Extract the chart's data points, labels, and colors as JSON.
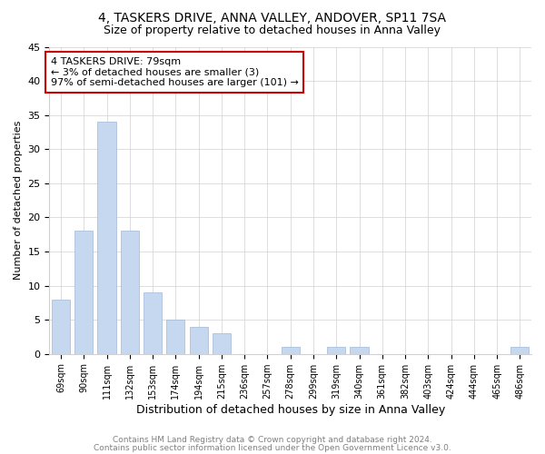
{
  "title1": "4, TASKERS DRIVE, ANNA VALLEY, ANDOVER, SP11 7SA",
  "title2": "Size of property relative to detached houses in Anna Valley",
  "xlabel": "Distribution of detached houses by size in Anna Valley",
  "ylabel": "Number of detached properties",
  "categories": [
    "69sqm",
    "90sqm",
    "111sqm",
    "132sqm",
    "153sqm",
    "174sqm",
    "194sqm",
    "215sqm",
    "236sqm",
    "257sqm",
    "278sqm",
    "299sqm",
    "319sqm",
    "340sqm",
    "361sqm",
    "382sqm",
    "403sqm",
    "424sqm",
    "444sqm",
    "465sqm",
    "486sqm"
  ],
  "values": [
    8,
    18,
    34,
    18,
    9,
    5,
    4,
    3,
    0,
    0,
    1,
    0,
    1,
    1,
    0,
    0,
    0,
    0,
    0,
    0,
    1
  ],
  "bar_color": "#c5d8f0",
  "bar_edge_color": "#a0b8d8",
  "annotation_box_text": "4 TASKERS DRIVE: 79sqm\n← 3% of detached houses are smaller (3)\n97% of semi-detached houses are larger (101) →",
  "annotation_box_color": "#ffffff",
  "annotation_box_edge_color": "#cc0000",
  "footnote1": "Contains HM Land Registry data © Crown copyright and database right 2024.",
  "footnote2": "Contains public sector information licensed under the Open Government Licence v3.0.",
  "footnote_color": "#808080",
  "title1_fontsize": 10,
  "title2_fontsize": 9,
  "xlabel_fontsize": 9,
  "ylabel_fontsize": 8,
  "annot_fontsize": 8,
  "footnote_fontsize": 6.5,
  "ylim": [
    0,
    45
  ],
  "yticks": [
    0,
    5,
    10,
    15,
    20,
    25,
    30,
    35,
    40,
    45
  ],
  "background_color": "#ffffff",
  "grid_color": "#d0d0d0"
}
